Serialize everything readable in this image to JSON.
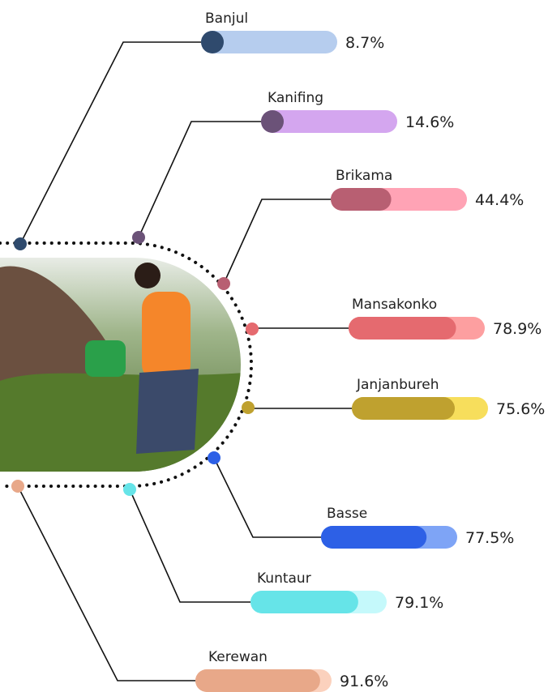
{
  "chart_data": {
    "type": "progress-bar",
    "categories": [
      "Banjul",
      "Kanifing",
      "Brikama",
      "Mansakonko",
      "Janjanbureh",
      "Basse",
      "Kuntaur",
      "Kerewan"
    ],
    "values": [
      8.7,
      14.6,
      44.4,
      78.9,
      75.6,
      77.5,
      79.1,
      91.6
    ],
    "value_labels": [
      "8.7%",
      "14.6%",
      "44.4%",
      "78.9%",
      "75.6%",
      "77.5%",
      "79.1%",
      "91.6%"
    ],
    "colors": [
      "#2f4a6d",
      "#6b5278",
      "#b85f72",
      "#e56a6f",
      "#bfa12f",
      "#2d60e6",
      "#66e4e8",
      "#e8a889"
    ],
    "track_colors": [
      "#b6cdee",
      "#d4a6ef",
      "#ffa3b5",
      "#fd9fa0",
      "#f7de5c",
      "#7ea4f6",
      "#c5f9fb",
      "#fbd1bd"
    ],
    "xlim": [
      0,
      100
    ]
  }
}
